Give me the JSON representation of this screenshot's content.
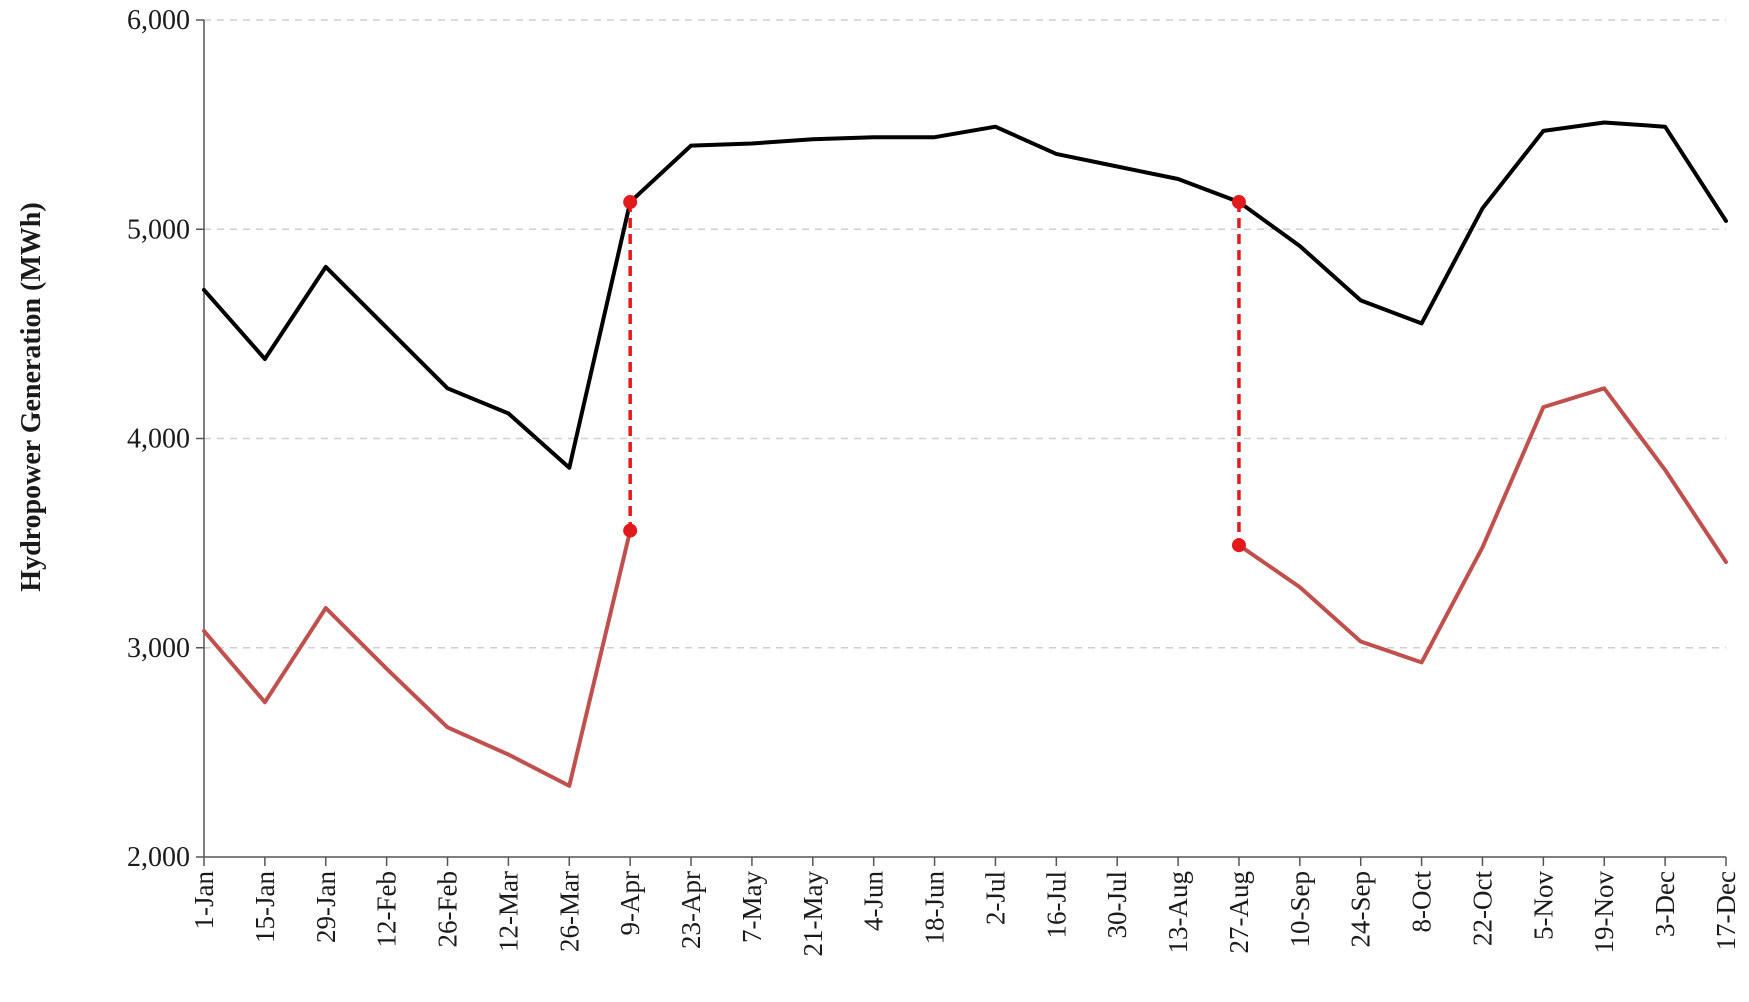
{
  "chart_data": {
    "type": "line",
    "title": "",
    "xlabel": "",
    "ylabel": "Hydropower Generation (MWh)",
    "ylim": [
      2000,
      6000
    ],
    "yticks": [
      2000,
      3000,
      4000,
      5000,
      6000
    ],
    "ytick_labels": [
      "2,000",
      "3,000",
      "4,000",
      "5,000",
      "6,000"
    ],
    "grid": "horizontal dashed",
    "legend": "none",
    "categories": [
      "1-Jan",
      "15-Jan",
      "29-Jan",
      "12-Feb",
      "26-Feb",
      "12-Mar",
      "26-Mar",
      "9-Apr",
      "23-Apr",
      "7-May",
      "21-May",
      "4-Jun",
      "18-Jun",
      "2-Jul",
      "16-Jul",
      "30-Jul",
      "13-Aug",
      "27-Aug",
      "10-Sep",
      "24-Sep",
      "8-Oct",
      "22-Oct",
      "5-Nov",
      "19-Nov",
      "3-Dec",
      "17-Dec"
    ],
    "series": [
      {
        "color": "#000000",
        "values": [
          4710,
          4380,
          4820,
          4530,
          4240,
          4120,
          3860,
          5130,
          5400,
          5410,
          5430,
          5440,
          5440,
          5490,
          5360,
          5300,
          5240,
          5130,
          4920,
          4660,
          4550,
          5100,
          5470,
          5510,
          5490,
          5040
        ]
      },
      {
        "color": "#c0504d",
        "values": [
          3080,
          2740,
          3190,
          2900,
          2620,
          2490,
          2340,
          3560,
          null,
          null,
          null,
          null,
          null,
          null,
          null,
          null,
          null,
          3490,
          3290,
          3030,
          2930,
          3480,
          4150,
          4240,
          3850,
          3410
        ]
      }
    ],
    "annotations": [
      {
        "type": "dashed-connector",
        "color": "#e31a1c",
        "category": "9-Apr",
        "from": 5130,
        "to": 3560
      },
      {
        "type": "dashed-connector",
        "color": "#e31a1c",
        "category": "27-Aug",
        "from": 5130,
        "to": 3490
      }
    ]
  }
}
